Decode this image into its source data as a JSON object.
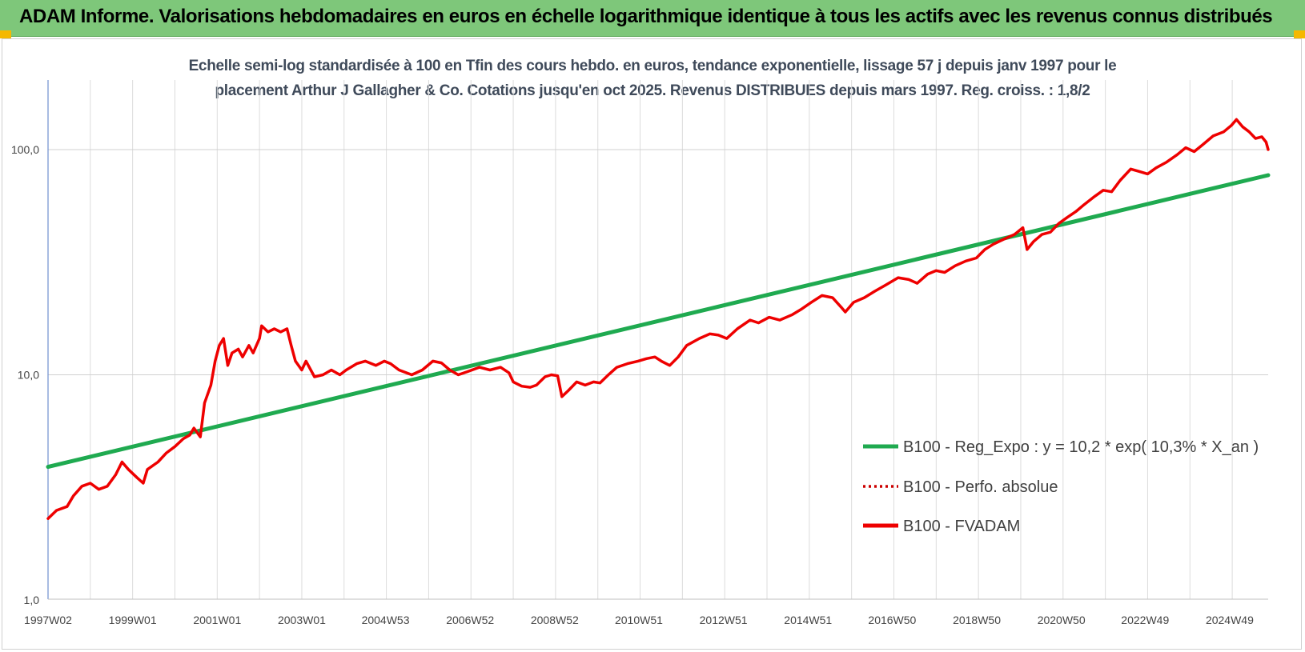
{
  "header": {
    "title": "ADAM Informe. Valorisations hebdomadaires en euros en échelle logarithmique identique à tous les actifs avec les revenus connus distribués"
  },
  "colors": {
    "banner": "#7ec77a",
    "corner_accent": "#f5b800",
    "regression": "#1faa50",
    "fvadam": "#ee0000",
    "perfo": "#cc0000"
  },
  "chart_data": {
    "type": "line",
    "title_line1": "Echelle semi-log standardisée à 100 en Tfin des cours hebdo. en euros, tendance exponentielle, lissage 57 j depuis janv 1997 pour le",
    "title_line2": "placement Arthur J Gallagher & Co. Cotations jusqu'en oct 2025. Revenus DISTRIBUES depuis mars 1997. Reg. croiss. : 1,8/2",
    "y_scale": "log",
    "ylim": [
      1,
      180
    ],
    "y_ticks": [
      {
        "value": 100,
        "label": "100,0"
      },
      {
        "value": 10,
        "label": "10,0"
      },
      {
        "value": 1,
        "label": "1,0"
      }
    ],
    "xlim": [
      1997.0,
      2025.85
    ],
    "x_ticks": [
      {
        "x": 1997.0,
        "label": "1997W02"
      },
      {
        "x": 1999.0,
        "label": "1999W01"
      },
      {
        "x": 2001.0,
        "label": "2001W01"
      },
      {
        "x": 2003.0,
        "label": "2003W01"
      },
      {
        "x": 2004.98,
        "label": "2004W53"
      },
      {
        "x": 2006.98,
        "label": "2006W52"
      },
      {
        "x": 2008.98,
        "label": "2008W52"
      },
      {
        "x": 2010.97,
        "label": "2010W51"
      },
      {
        "x": 2012.97,
        "label": "2012W51"
      },
      {
        "x": 2014.97,
        "label": "2014W51"
      },
      {
        "x": 2016.96,
        "label": "2016W50"
      },
      {
        "x": 2018.96,
        "label": "2018W50"
      },
      {
        "x": 2020.96,
        "label": "2020W50"
      },
      {
        "x": 2022.94,
        "label": "2022W49"
      },
      {
        "x": 2024.94,
        "label": "2024W49"
      }
    ],
    "grid": "vertical-and-horizontal",
    "legend_position": "right-middle",
    "series": [
      {
        "name": "B100 - Reg_Expo : y = 10,2 * exp( 10,3% *  X_an )",
        "style": "solid",
        "points": [
          [
            1997.0,
            3.9
          ],
          [
            2025.85,
            77
          ]
        ]
      },
      {
        "name": "B100 - Perfo. absolue",
        "style": "dotted",
        "points": []
      },
      {
        "name": "B100 - FVADAM",
        "style": "solid",
        "points": [
          [
            1997.0,
            2.3
          ],
          [
            1997.2,
            2.5
          ],
          [
            1997.45,
            2.6
          ],
          [
            1997.6,
            2.9
          ],
          [
            1997.8,
            3.2
          ],
          [
            1998.0,
            3.3
          ],
          [
            1998.2,
            3.1
          ],
          [
            1998.4,
            3.2
          ],
          [
            1998.6,
            3.6
          ],
          [
            1998.75,
            4.1
          ],
          [
            1998.9,
            3.8
          ],
          [
            1999.1,
            3.5
          ],
          [
            1999.25,
            3.3
          ],
          [
            1999.35,
            3.8
          ],
          [
            1999.6,
            4.1
          ],
          [
            1999.8,
            4.5
          ],
          [
            2000.0,
            4.8
          ],
          [
            2000.2,
            5.2
          ],
          [
            2000.35,
            5.4
          ],
          [
            2000.45,
            5.8
          ],
          [
            2000.6,
            5.3
          ],
          [
            2000.7,
            7.5
          ],
          [
            2000.85,
            9.0
          ],
          [
            2000.95,
            11.5
          ],
          [
            2001.05,
            13.5
          ],
          [
            2001.15,
            14.5
          ],
          [
            2001.25,
            11.0
          ],
          [
            2001.35,
            12.5
          ],
          [
            2001.5,
            13.0
          ],
          [
            2001.6,
            12.0
          ],
          [
            2001.75,
            13.5
          ],
          [
            2001.85,
            12.5
          ],
          [
            2002.0,
            14.5
          ],
          [
            2002.05,
            16.5
          ],
          [
            2002.2,
            15.5
          ],
          [
            2002.35,
            16.0
          ],
          [
            2002.5,
            15.5
          ],
          [
            2002.65,
            16.0
          ],
          [
            2002.75,
            13.5
          ],
          [
            2002.85,
            11.5
          ],
          [
            2003.0,
            10.5
          ],
          [
            2003.1,
            11.5
          ],
          [
            2003.3,
            9.8
          ],
          [
            2003.5,
            10.0
          ],
          [
            2003.7,
            10.5
          ],
          [
            2003.9,
            10.0
          ],
          [
            2004.05,
            10.5
          ],
          [
            2004.3,
            11.2
          ],
          [
            2004.5,
            11.5
          ],
          [
            2004.75,
            11.0
          ],
          [
            2004.95,
            11.5
          ],
          [
            2005.1,
            11.2
          ],
          [
            2005.3,
            10.5
          ],
          [
            2005.6,
            10.0
          ],
          [
            2005.85,
            10.5
          ],
          [
            2006.1,
            11.5
          ],
          [
            2006.3,
            11.3
          ],
          [
            2006.5,
            10.5
          ],
          [
            2006.7,
            10.0
          ],
          [
            2006.9,
            10.3
          ],
          [
            2007.2,
            10.8
          ],
          [
            2007.45,
            10.5
          ],
          [
            2007.7,
            10.8
          ],
          [
            2007.9,
            10.2
          ],
          [
            2008.0,
            9.3
          ],
          [
            2008.2,
            8.9
          ],
          [
            2008.4,
            8.8
          ],
          [
            2008.55,
            9.0
          ],
          [
            2008.75,
            9.8
          ],
          [
            2008.9,
            10.0
          ],
          [
            2009.05,
            9.9
          ],
          [
            2009.15,
            8.0
          ],
          [
            2009.3,
            8.5
          ],
          [
            2009.5,
            9.3
          ],
          [
            2009.7,
            9.0
          ],
          [
            2009.9,
            9.3
          ],
          [
            2010.05,
            9.2
          ],
          [
            2010.25,
            10.0
          ],
          [
            2010.45,
            10.8
          ],
          [
            2010.7,
            11.2
          ],
          [
            2010.95,
            11.5
          ],
          [
            2011.15,
            11.8
          ],
          [
            2011.35,
            12.0
          ],
          [
            2011.5,
            11.5
          ],
          [
            2011.7,
            11.0
          ],
          [
            2011.9,
            12.0
          ],
          [
            2012.1,
            13.5
          ],
          [
            2012.4,
            14.5
          ],
          [
            2012.65,
            15.2
          ],
          [
            2012.85,
            15.0
          ],
          [
            2013.05,
            14.5
          ],
          [
            2013.3,
            16.0
          ],
          [
            2013.6,
            17.5
          ],
          [
            2013.8,
            17.0
          ],
          [
            2014.05,
            18.0
          ],
          [
            2014.3,
            17.5
          ],
          [
            2014.6,
            18.5
          ],
          [
            2014.8,
            19.5
          ],
          [
            2015.05,
            21.0
          ],
          [
            2015.3,
            22.5
          ],
          [
            2015.55,
            22.0
          ],
          [
            2015.75,
            20.0
          ],
          [
            2015.85,
            19.0
          ],
          [
            2016.05,
            21.0
          ],
          [
            2016.3,
            22.0
          ],
          [
            2016.55,
            23.5
          ],
          [
            2016.8,
            25.0
          ],
          [
            2017.1,
            27.0
          ],
          [
            2017.35,
            26.5
          ],
          [
            2017.55,
            25.5
          ],
          [
            2017.8,
            28.0
          ],
          [
            2018.0,
            29.0
          ],
          [
            2018.2,
            28.5
          ],
          [
            2018.45,
            30.5
          ],
          [
            2018.7,
            32.0
          ],
          [
            2018.95,
            33.0
          ],
          [
            2019.15,
            36.0
          ],
          [
            2019.35,
            38.0
          ],
          [
            2019.6,
            40.0
          ],
          [
            2019.85,
            42.0
          ],
          [
            2020.05,
            45.0
          ],
          [
            2020.15,
            36.0
          ],
          [
            2020.3,
            39.0
          ],
          [
            2020.5,
            42.0
          ],
          [
            2020.7,
            43.0
          ],
          [
            2020.9,
            47.0
          ],
          [
            2021.1,
            50.0
          ],
          [
            2021.3,
            53.0
          ],
          [
            2021.5,
            57.0
          ],
          [
            2021.75,
            62.0
          ],
          [
            2021.95,
            66.0
          ],
          [
            2022.15,
            65.0
          ],
          [
            2022.35,
            73.0
          ],
          [
            2022.6,
            82.0
          ],
          [
            2022.8,
            80.0
          ],
          [
            2023.0,
            78.0
          ],
          [
            2023.2,
            83.0
          ],
          [
            2023.45,
            88.0
          ],
          [
            2023.7,
            95.0
          ],
          [
            2023.9,
            102.0
          ],
          [
            2024.1,
            98.0
          ],
          [
            2024.3,
            105.0
          ],
          [
            2024.55,
            115.0
          ],
          [
            2024.8,
            120.0
          ],
          [
            2024.98,
            128.0
          ],
          [
            2025.1,
            136.0
          ],
          [
            2025.25,
            126.0
          ],
          [
            2025.4,
            120.0
          ],
          [
            2025.55,
            112.0
          ],
          [
            2025.7,
            114.0
          ],
          [
            2025.8,
            108.0
          ],
          [
            2025.85,
            100.0
          ]
        ]
      }
    ]
  }
}
